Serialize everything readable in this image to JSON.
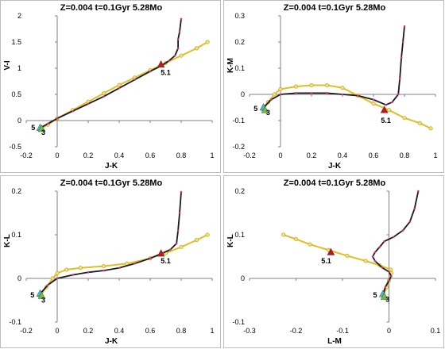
{
  "colors": {
    "black_track": "#1a1a1a",
    "yellow_track": "#e0c020",
    "red_marker": "#c01818",
    "magenta_points": "#d0308a",
    "cyan_marker": "#40b8d0",
    "green_marker": "#70c040"
  },
  "chart_data": [
    {
      "type": "line",
      "title": "Z=0.004  t=0.1Gyr 5.28Mo",
      "xlabel": "J-K",
      "ylabel": "V-I",
      "xlim": [
        -0.2,
        1.0
      ],
      "ylim": [
        -0.5,
        2.0
      ],
      "xticks": [
        "-0.2",
        "0",
        "0.2",
        "0.4",
        "0.6",
        "0.8",
        "1"
      ],
      "yticks": [
        "-0.5",
        "0",
        "0.5",
        "1",
        "1.5",
        "2"
      ],
      "grid": false,
      "series": [
        {
          "values_xy": [
            [
              -0.11,
              -0.14
            ],
            [
              -0.06,
              -0.06
            ],
            [
              0.0,
              0.04
            ],
            [
              0.1,
              0.18
            ],
            [
              0.2,
              0.32
            ],
            [
              0.3,
              0.46
            ],
            [
              0.4,
              0.62
            ],
            [
              0.5,
              0.78
            ],
            [
              0.6,
              0.94
            ],
            [
              0.68,
              1.06
            ],
            [
              0.72,
              1.14
            ],
            [
              0.76,
              1.24
            ],
            [
              0.78,
              1.38
            ],
            [
              0.78,
              1.55
            ],
            [
              0.79,
              1.7
            ],
            [
              0.8,
              1.94
            ]
          ]
        },
        {
          "values_xy": [
            [
              -0.11,
              -0.16
            ],
            [
              -0.06,
              -0.08
            ],
            [
              0.0,
              0.04
            ],
            [
              0.1,
              0.2
            ],
            [
              0.2,
              0.36
            ],
            [
              0.3,
              0.52
            ],
            [
              0.4,
              0.68
            ],
            [
              0.5,
              0.82
            ],
            [
              0.6,
              0.96
            ],
            [
              0.7,
              1.1
            ],
            [
              0.8,
              1.24
            ],
            [
              0.9,
              1.38
            ],
            [
              0.97,
              1.5
            ]
          ]
        }
      ],
      "annotations": [
        {
          "text": "5",
          "x": -0.155,
          "y": -0.14
        },
        {
          "text": "3",
          "x": -0.09,
          "y": -0.23
        },
        {
          "text": "5.1",
          "x": 0.7,
          "y": 0.92
        }
      ],
      "markers": {
        "red": [
          0.67,
          1.07
        ],
        "cyan": [
          -0.11,
          -0.14
        ],
        "green": [
          -0.1,
          -0.16
        ]
      }
    },
    {
      "type": "line",
      "title": "Z=0.004  t=0.1Gyr 5.28Mo",
      "xlabel": "J-K",
      "ylabel": "K-M",
      "xlim": [
        -0.2,
        1.0
      ],
      "ylim": [
        -0.2,
        0.3
      ],
      "xticks": [
        "-0.2",
        "0",
        "0.2",
        "0.4",
        "0.6",
        "0.8",
        "1"
      ],
      "yticks": [
        "-0.2",
        "-0.1",
        "0",
        "0.1",
        "0.2",
        "0.3"
      ],
      "grid": false,
      "series": [
        {
          "values_xy": [
            [
              -0.11,
              -0.05
            ],
            [
              -0.06,
              -0.02
            ],
            [
              0.0,
              0.0
            ],
            [
              0.1,
              0.005
            ],
            [
              0.2,
              0.005
            ],
            [
              0.3,
              0.005
            ],
            [
              0.4,
              0.0
            ],
            [
              0.5,
              -0.005
            ],
            [
              0.6,
              -0.02
            ],
            [
              0.68,
              -0.04
            ],
            [
              0.72,
              -0.03
            ],
            [
              0.76,
              0.0
            ],
            [
              0.77,
              0.06
            ],
            [
              0.78,
              0.14
            ],
            [
              0.79,
              0.2
            ],
            [
              0.8,
              0.26
            ]
          ]
        },
        {
          "values_xy": [
            [
              -0.11,
              -0.06
            ],
            [
              -0.08,
              -0.03
            ],
            [
              -0.04,
              0.0
            ],
            [
              0.0,
              0.02
            ],
            [
              0.1,
              0.03
            ],
            [
              0.2,
              0.035
            ],
            [
              0.3,
              0.035
            ],
            [
              0.4,
              0.025
            ],
            [
              0.5,
              -0.005
            ],
            [
              0.6,
              -0.035
            ],
            [
              0.7,
              -0.06
            ],
            [
              0.8,
              -0.09
            ],
            [
              0.9,
              -0.11
            ],
            [
              0.97,
              -0.13
            ]
          ]
        }
      ],
      "annotations": [
        {
          "text": "5",
          "x": -0.16,
          "y": -0.055
        },
        {
          "text": "3",
          "x": -0.08,
          "y": -0.07
        },
        {
          "text": "5.1",
          "x": 0.68,
          "y": -0.1
        }
      ],
      "markers": {
        "red": [
          0.67,
          -0.06
        ],
        "cyan": [
          -0.11,
          -0.05
        ],
        "green": [
          -0.1,
          -0.06
        ]
      }
    },
    {
      "type": "line",
      "title": "Z=0.004  t=0.1Gyr 5.28Mo",
      "xlabel": "J-K",
      "ylabel": "K-L",
      "xlim": [
        -0.2,
        1.0
      ],
      "ylim": [
        -0.1,
        0.2
      ],
      "xticks": [
        "-0.2",
        "0",
        "0.2",
        "0.4",
        "0.6",
        "0.8",
        "1"
      ],
      "yticks": [
        "-0.1",
        "0",
        "0.1",
        "0.2"
      ],
      "grid": false,
      "series": [
        {
          "values_xy": [
            [
              -0.11,
              -0.035
            ],
            [
              -0.06,
              -0.015
            ],
            [
              0.0,
              0.0
            ],
            [
              0.1,
              0.008
            ],
            [
              0.2,
              0.014
            ],
            [
              0.3,
              0.018
            ],
            [
              0.4,
              0.024
            ],
            [
              0.5,
              0.034
            ],
            [
              0.6,
              0.046
            ],
            [
              0.68,
              0.058
            ],
            [
              0.73,
              0.066
            ],
            [
              0.77,
              0.08
            ],
            [
              0.78,
              0.11
            ],
            [
              0.79,
              0.15
            ],
            [
              0.8,
              0.198
            ]
          ]
        },
        {
          "values_xy": [
            [
              -0.11,
              -0.04
            ],
            [
              -0.07,
              -0.02
            ],
            [
              -0.03,
              0.0
            ],
            [
              0.0,
              0.012
            ],
            [
              0.06,
              0.02
            ],
            [
              0.15,
              0.024
            ],
            [
              0.3,
              0.028
            ],
            [
              0.45,
              0.034
            ],
            [
              0.6,
              0.046
            ],
            [
              0.7,
              0.058
            ],
            [
              0.8,
              0.072
            ],
            [
              0.9,
              0.088
            ],
            [
              0.97,
              0.1
            ]
          ]
        }
      ],
      "annotations": [
        {
          "text": "5",
          "x": -0.16,
          "y": -0.038
        },
        {
          "text": "3",
          "x": -0.09,
          "y": -0.05
        },
        {
          "text": "5.1",
          "x": 0.7,
          "y": 0.04
        }
      ],
      "markers": {
        "red": [
          0.67,
          0.057
        ],
        "cyan": [
          -0.11,
          -0.035
        ],
        "green": [
          -0.1,
          -0.04
        ]
      }
    },
    {
      "type": "line",
      "title": "Z=0.004  t=0.1Gyr 5.28Mo",
      "xlabel": "L-M",
      "ylabel": "K-L",
      "xlim": [
        -0.3,
        0.1
      ],
      "ylim": [
        -0.1,
        0.2
      ],
      "xticks": [
        "-0.3",
        "-0.2",
        "-0.1",
        "0",
        "0.1"
      ],
      "yticks": [
        "-0.1",
        "0",
        "0.1",
        "0.2"
      ],
      "grid": false,
      "series": [
        {
          "values_xy": [
            [
              -0.012,
              -0.035
            ],
            [
              -0.008,
              -0.02
            ],
            [
              0.0,
              -0.005
            ],
            [
              0.005,
              0.005
            ],
            [
              0.0,
              0.015
            ],
            [
              -0.015,
              0.025
            ],
            [
              -0.03,
              0.04
            ],
            [
              -0.035,
              0.05
            ],
            [
              -0.03,
              0.06
            ],
            [
              -0.02,
              0.072
            ],
            [
              -0.01,
              0.085
            ],
            [
              0.01,
              0.095
            ],
            [
              0.03,
              0.11
            ],
            [
              0.045,
              0.13
            ],
            [
              0.055,
              0.16
            ],
            [
              0.063,
              0.2
            ]
          ]
        },
        {
          "values_xy": [
            [
              -0.012,
              -0.04
            ],
            [
              -0.005,
              -0.02
            ],
            [
              0.0,
              -0.005
            ],
            [
              0.005,
              0.012
            ],
            [
              0.004,
              0.02
            ],
            [
              -0.02,
              0.03
            ],
            [
              -0.05,
              0.04
            ],
            [
              -0.09,
              0.052
            ],
            [
              -0.13,
              0.065
            ],
            [
              -0.17,
              0.078
            ],
            [
              -0.2,
              0.09
            ],
            [
              -0.227,
              0.1
            ]
          ]
        }
      ],
      "annotations": [
        {
          "text": "5",
          "x": -0.03,
          "y": -0.038
        },
        {
          "text": "3",
          "x": -0.003,
          "y": -0.048
        },
        {
          "text": "5.1",
          "x": -0.135,
          "y": 0.04
        }
      ],
      "markers": {
        "red": [
          -0.125,
          0.06
        ],
        "cyan": [
          -0.013,
          -0.036
        ],
        "green": [
          -0.01,
          -0.042
        ]
      }
    }
  ]
}
